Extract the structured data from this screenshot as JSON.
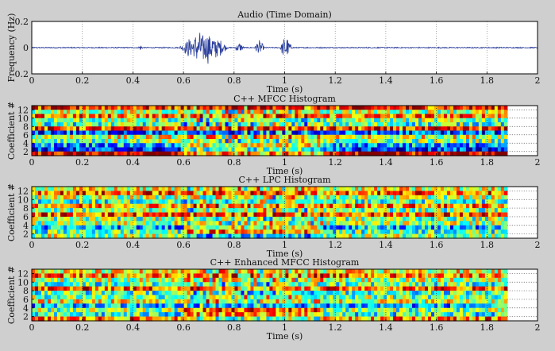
{
  "chart_data": [
    {
      "type": "line",
      "title": "Audio (Time Domain)",
      "xlabel": "Time (s)",
      "ylabel": "Frequency (Hz)",
      "xlim": [
        0,
        2
      ],
      "ylim": [
        -0.2,
        0.2
      ],
      "xticks": [
        "0",
        "0.2",
        "0.4",
        "0.6",
        "0.8",
        "1",
        "1.2",
        "1.4",
        "1.6",
        "1.8",
        "2"
      ],
      "yticks": [
        "0.2",
        "0",
        "-0.2"
      ],
      "grid": true,
      "color": "#2b3f9c",
      "bursts": [
        {
          "t_start": 0.42,
          "t_end": 0.44,
          "amplitude": 0.03
        },
        {
          "t_start": 0.58,
          "t_end": 0.78,
          "amplitude": 0.13
        },
        {
          "t_start": 0.8,
          "t_end": 0.84,
          "amplitude": 0.04
        },
        {
          "t_start": 0.88,
          "t_end": 0.92,
          "amplitude": 0.06
        },
        {
          "t_start": 0.98,
          "t_end": 1.03,
          "amplitude": 0.09
        }
      ]
    },
    {
      "type": "heatmap",
      "title": "C++  MFCC Histogram",
      "xlabel": "Time (s)",
      "ylabel": "Coefficient #",
      "xlim": [
        0,
        2
      ],
      "ylim": [
        1,
        13
      ],
      "data_end_time": 1.88,
      "xticks": [
        "0",
        "0.2",
        "0.4",
        "0.6",
        "0.8",
        "1",
        "1.2",
        "1.4",
        "1.6",
        "1.8",
        "2"
      ],
      "yticks": [
        "2",
        "4",
        "6",
        "8",
        "10",
        "12"
      ],
      "grid": true,
      "colormap": "jet",
      "row_means": [
        0.95,
        0.15,
        0.3,
        0.5,
        0.6,
        0.2,
        0.8,
        0.45,
        0.5,
        0.75,
        0.55,
        0.85
      ]
    },
    {
      "type": "heatmap",
      "title": "C++ LPC  Histogram",
      "xlabel": "Time (s)",
      "ylabel": "Coefficient #",
      "xlim": [
        0,
        2
      ],
      "ylim": [
        1,
        13
      ],
      "data_end_time": 1.88,
      "xticks": [
        "0",
        "0.2",
        "0.4",
        "0.6",
        "0.8",
        "1",
        "1.2",
        "1.4",
        "1.6",
        "1.8",
        "2"
      ],
      "yticks": [
        "2",
        "4",
        "6",
        "8",
        "10",
        "12"
      ],
      "grid": true,
      "colormap": "jet",
      "row_means": [
        0.55,
        0.45,
        0.3,
        0.55,
        0.5,
        0.8,
        0.5,
        0.75,
        0.45,
        0.55,
        0.8,
        0.6
      ]
    },
    {
      "type": "heatmap",
      "title": "C++ Enhanced MFCC  Histogram",
      "xlabel": "Time (s)",
      "ylabel": "Coefficient #",
      "xlim": [
        0,
        2
      ],
      "ylim": [
        1,
        13
      ],
      "data_end_time": 1.88,
      "xticks": [
        "0",
        "0.2",
        "0.4",
        "0.6",
        "0.8",
        "1",
        "1.2",
        "1.4",
        "1.6",
        "1.8",
        "2"
      ],
      "yticks": [
        "2",
        "4",
        "6",
        "8",
        "10",
        "12"
      ],
      "grid": true,
      "colormap": "jet",
      "row_means": [
        0.75,
        0.4,
        0.5,
        0.3,
        0.6,
        0.5,
        0.45,
        0.8,
        0.45,
        0.55,
        0.75,
        0.6
      ]
    }
  ]
}
